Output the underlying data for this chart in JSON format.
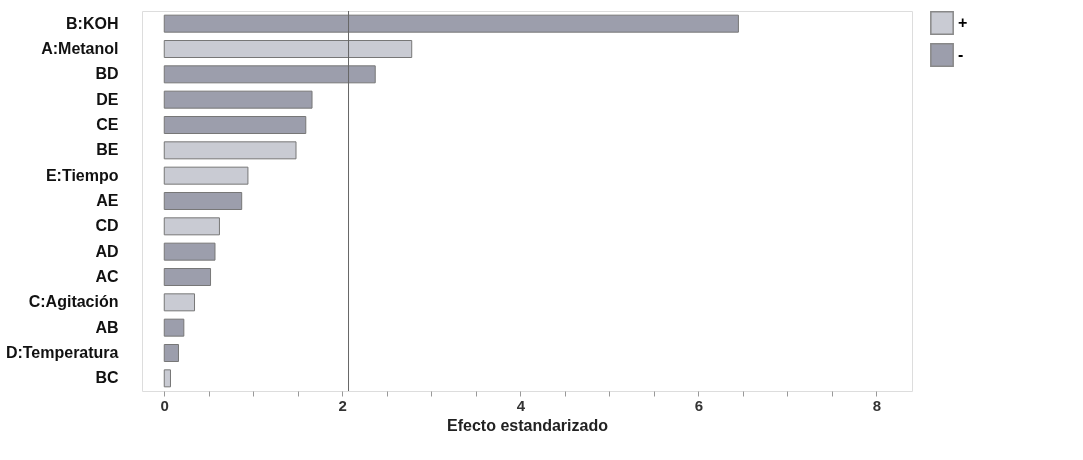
{
  "chart_data": {
    "type": "bar",
    "orientation": "horizontal",
    "xlabel": "Efecto estandarizado",
    "categories": [
      "B:KOH",
      "A:Metanol",
      "BD",
      "DE",
      "CE",
      "BE",
      "E:Tiempo",
      "AE",
      "CD",
      "AD",
      "AC",
      "C:Agitación",
      "AB",
      "D:Temperatura",
      "BC"
    ],
    "series": [
      {
        "name": "+",
        "color": "#c9cbd3",
        "values": [
          null,
          2.78,
          null,
          null,
          null,
          1.48,
          0.94,
          null,
          0.62,
          null,
          null,
          0.34,
          null,
          null,
          0.07
        ]
      },
      {
        "name": "-",
        "color": "#9c9eac",
        "values": [
          6.45,
          null,
          2.37,
          1.66,
          1.59,
          null,
          null,
          0.87,
          null,
          0.57,
          0.52,
          null,
          0.22,
          0.16,
          null
        ]
      }
    ],
    "xlim": [
      -0.25,
      8.4
    ],
    "xticks": [
      0,
      {
        "value": 0.5,
        "label": null
      },
      {
        "value": 1,
        "label": null
      },
      {
        "value": 1.5,
        "label": null
      },
      2,
      {
        "value": 2.5,
        "label": null
      },
      {
        "value": 3,
        "label": null
      },
      {
        "value": 3.5,
        "label": null
      },
      4,
      {
        "value": 4.5,
        "label": null
      },
      {
        "value": 5,
        "label": null
      },
      {
        "value": 5.5,
        "label": null
      },
      6,
      {
        "value": 6.5,
        "label": null
      },
      {
        "value": 7,
        "label": null
      },
      {
        "value": 7.5,
        "label": null
      },
      8
    ],
    "ref_lines": [
      {
        "axis": "x",
        "value": 2.07,
        "color": "#666666"
      }
    ],
    "legend": "top right",
    "grid": false
  }
}
